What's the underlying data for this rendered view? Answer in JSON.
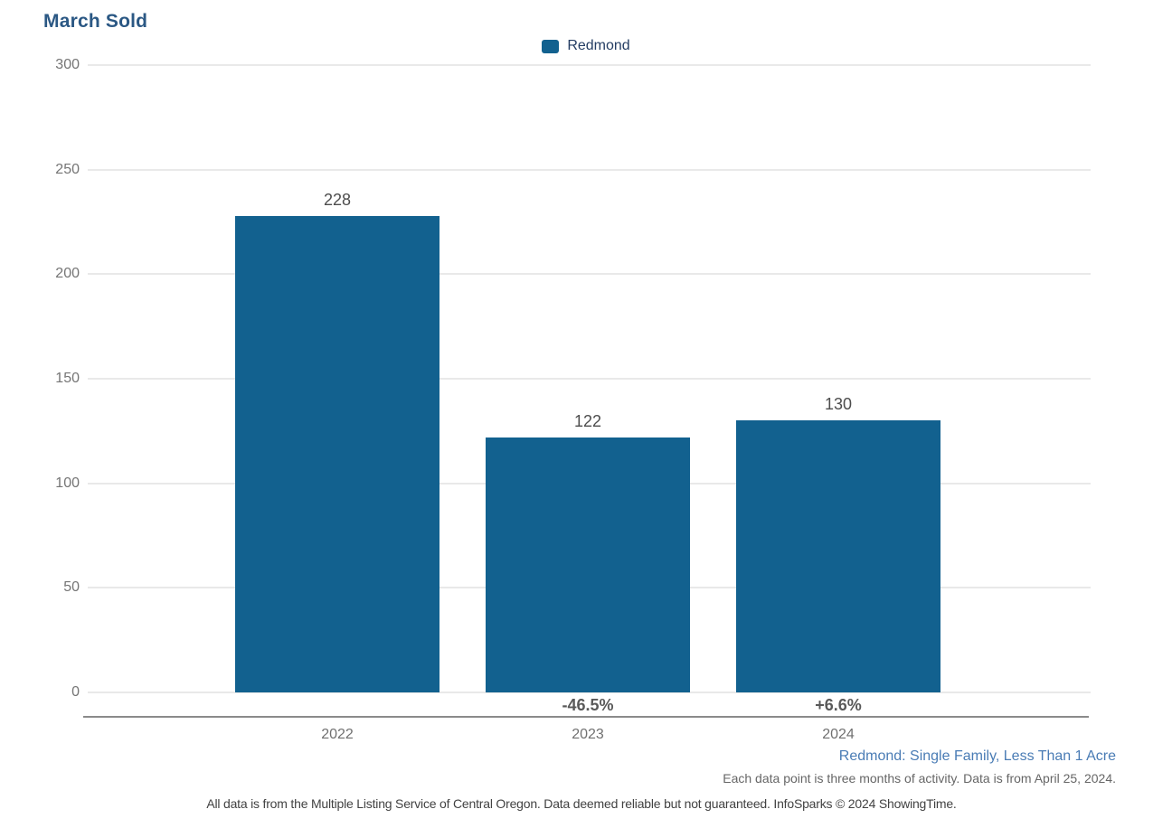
{
  "title": "March Sold",
  "legend": [
    {
      "label": "Redmond",
      "swatch_icon": "legend-square-icon",
      "color": "#12618F"
    }
  ],
  "chart_data": {
    "type": "bar",
    "title": "March Sold",
    "categories": [
      "2022",
      "2023",
      "2024"
    ],
    "series": [
      {
        "name": "Redmond",
        "values": [
          228,
          122,
          130
        ]
      }
    ],
    "value_labels": [
      "228",
      "122",
      "130"
    ],
    "pct_change_labels": [
      "",
      "-46.5%",
      "+6.6%"
    ],
    "xlabel": "",
    "ylabel": "",
    "ylim": [
      0,
      300
    ],
    "yticks": [
      0,
      50,
      100,
      150,
      200,
      250,
      300
    ],
    "grid": "horizontal",
    "legend_position": "top-center"
  },
  "footnotes": {
    "series_descriptor": "Redmond: Single Family, Less Than 1 Acre",
    "data_note": "Each data point is three months of activity. Data is from April 25, 2024.",
    "disclaimer": "All data is from the Multiple Listing Service of Central Oregon. Data deemed reliable but not guaranteed. InfoSparks © 2024 ShowingTime."
  },
  "colors": {
    "bar": "#12618F",
    "title_text": "#2B5884",
    "legend_text": "#243D63",
    "series_descriptor_text": "#4A7CB5",
    "axis_tick_text": "#757575",
    "value_label_text": "#4D4D4D",
    "pct_label_text": "#595959",
    "category_text": "#707070",
    "gridline": "#E9E9E9",
    "axis_line": "#8A8A8A"
  }
}
